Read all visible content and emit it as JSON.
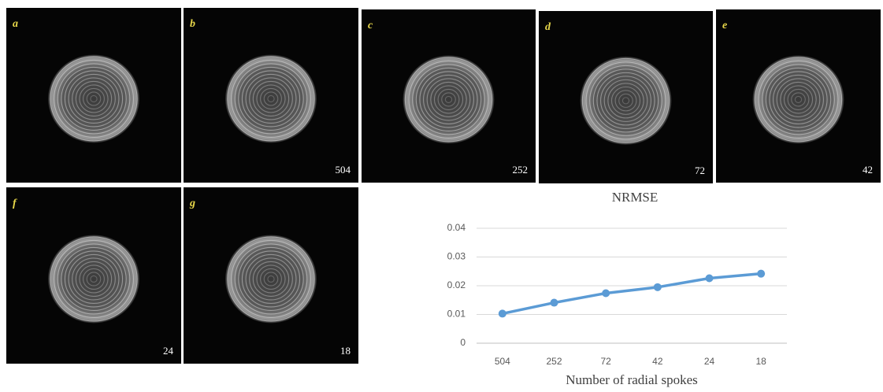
{
  "panels": [
    {
      "label": "a"
    },
    {
      "label": "b",
      "spokes": 504
    },
    {
      "label": "c",
      "spokes": 252
    },
    {
      "label": "d",
      "spokes": 72
    },
    {
      "label": "e",
      "spokes": 42
    },
    {
      "label": "f",
      "spokes": 24
    },
    {
      "label": "g",
      "spokes": 18
    }
  ],
  "chart_data": {
    "type": "line",
    "title": "NRMSE",
    "x_label": "Number of radial spokes",
    "categories": [
      "504",
      "252",
      "72",
      "42",
      "24",
      "18"
    ],
    "values": [
      0.0103,
      0.0141,
      0.0174,
      0.0195,
      0.0226,
      0.0242
    ],
    "color": "#5b9bd5",
    "ylim": [
      0,
      0.04
    ],
    "yticks": [
      0,
      0.01,
      0.02,
      0.03,
      0.04
    ],
    "grid": true
  }
}
